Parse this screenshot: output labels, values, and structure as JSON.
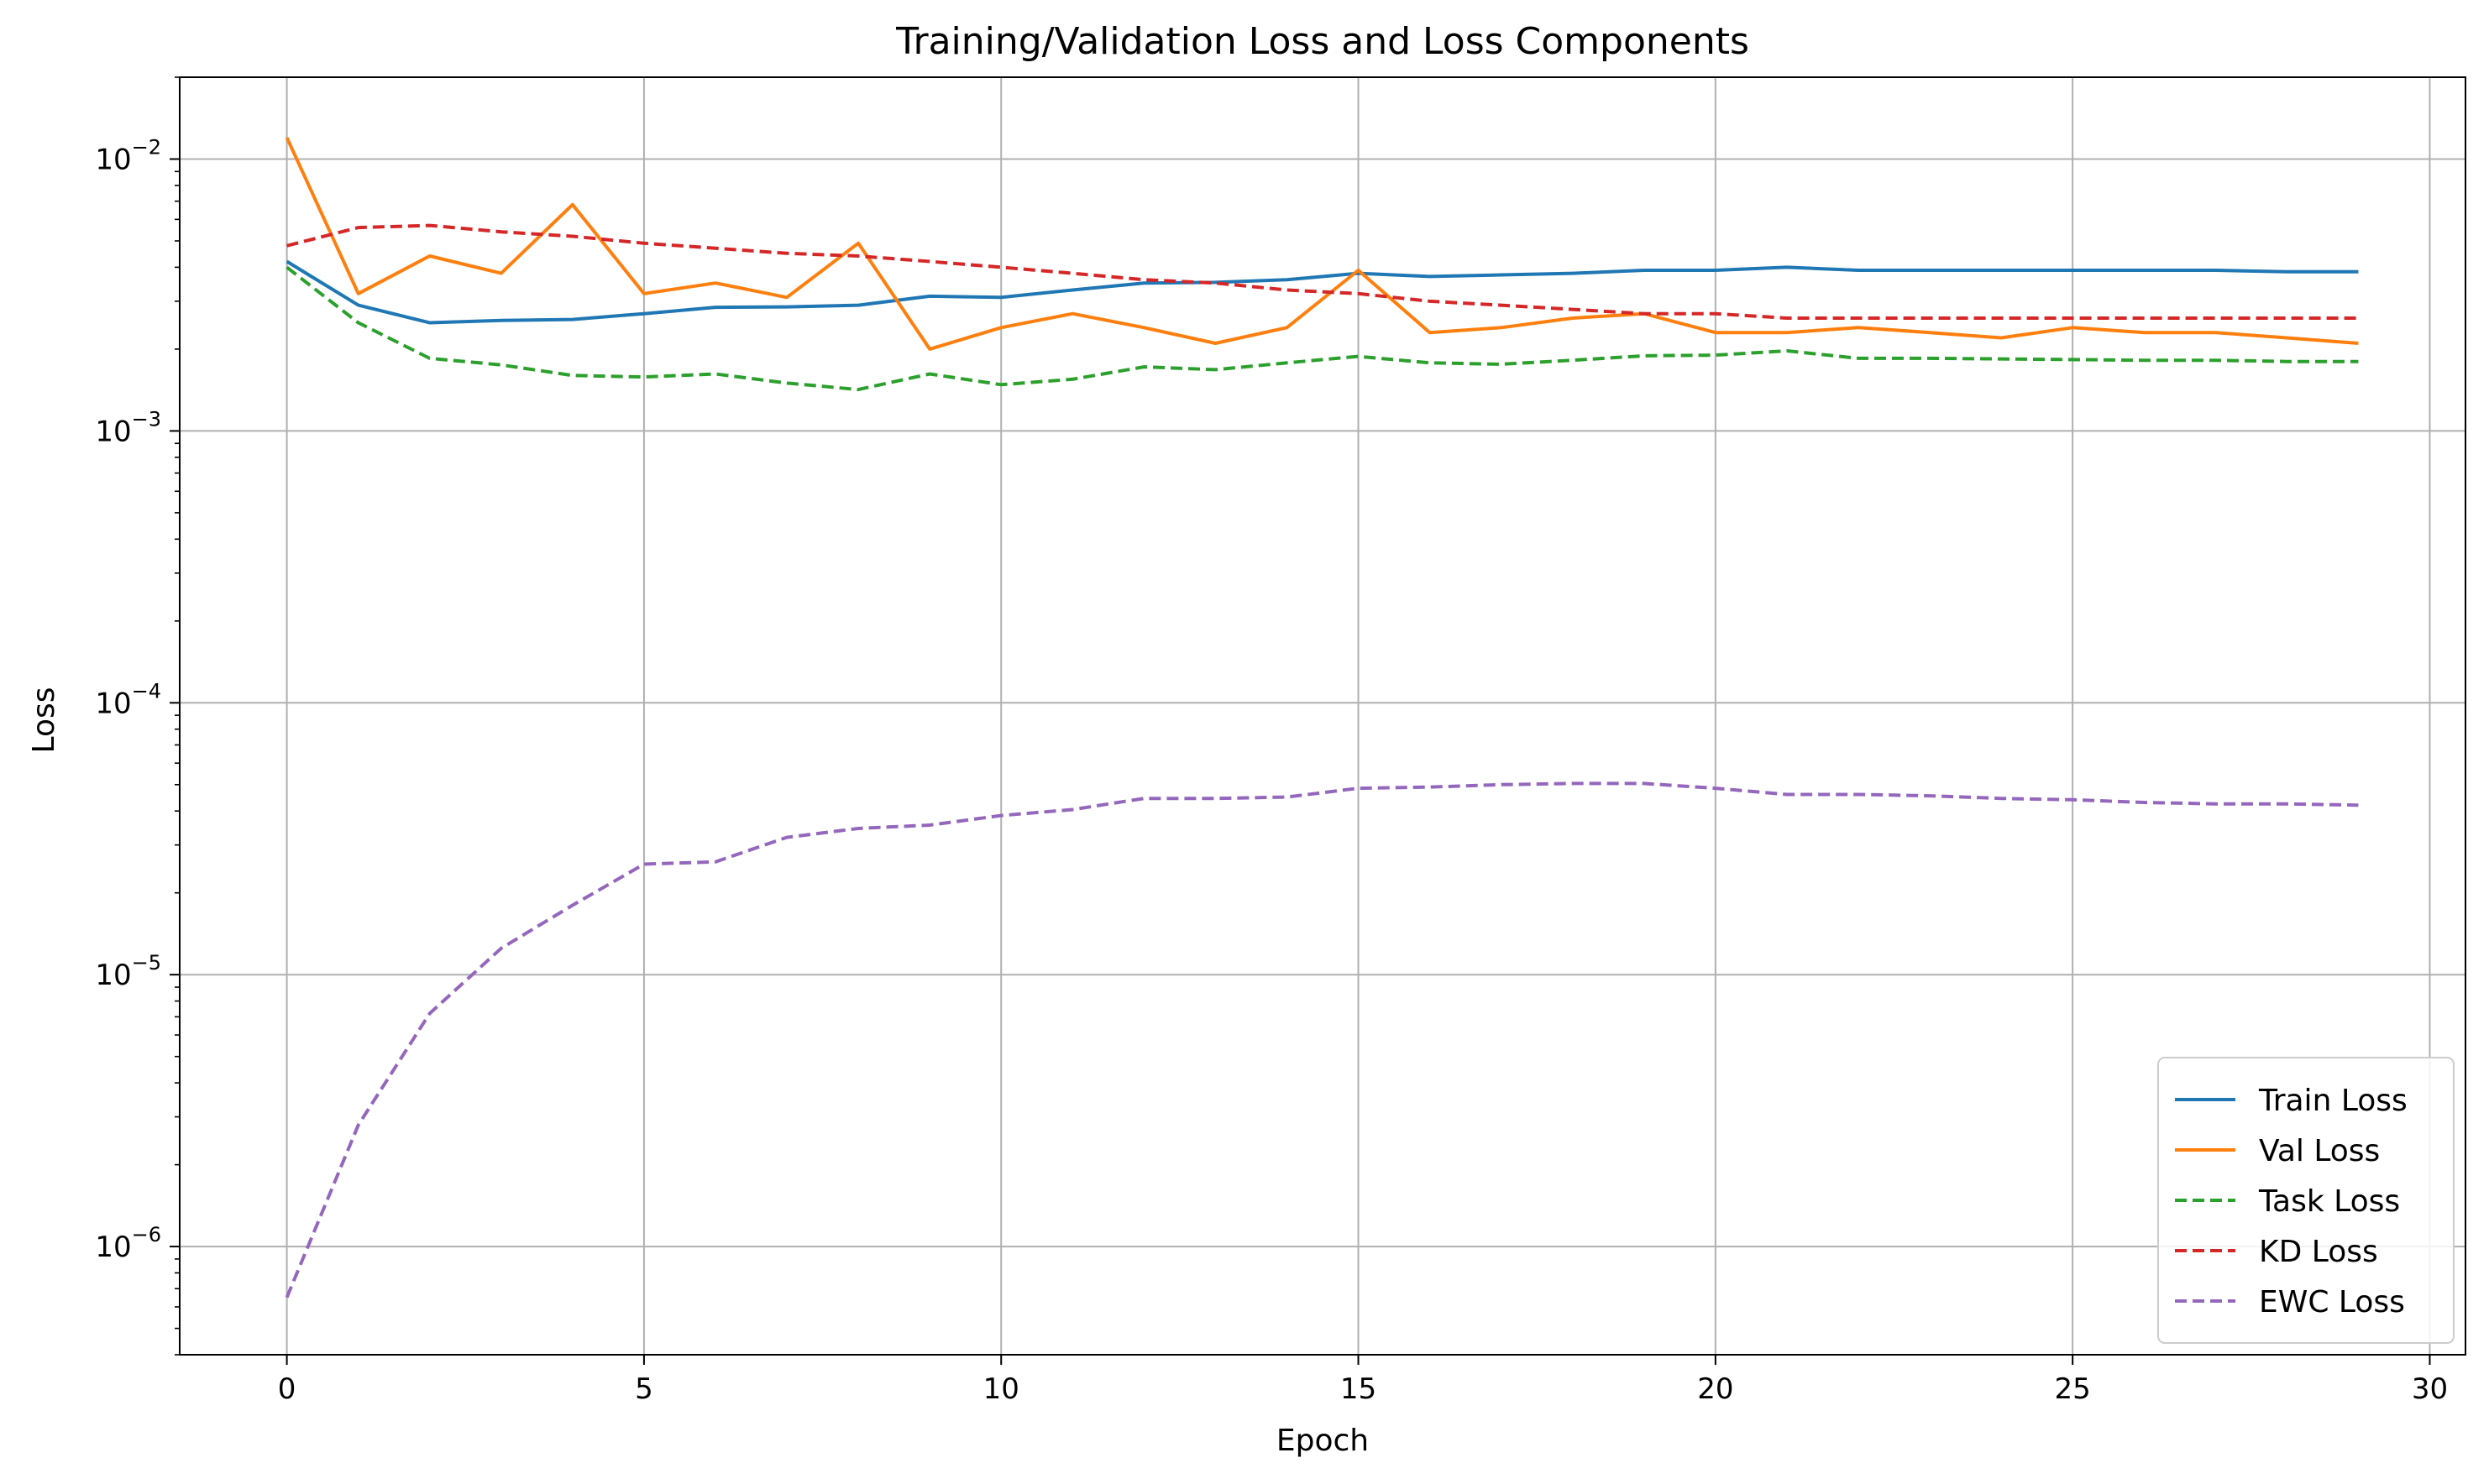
{
  "chart_data": {
    "type": "line",
    "title": "Training/Validation Loss and Loss Components",
    "xlabel": "Epoch",
    "ylabel": "Loss",
    "yscale": "log",
    "xlim": [
      -1.5,
      30.5
    ],
    "ylim": [
      4e-07,
      0.02
    ],
    "x_ticks": [
      0,
      5,
      10,
      15,
      20,
      25,
      30
    ],
    "x_tick_labels": [
      "0",
      "5",
      "10",
      "15",
      "20",
      "25",
      "30"
    ],
    "y_ticks": [
      0.01,
      0.001,
      0.0001,
      1e-05,
      1e-06
    ],
    "y_tick_labels": [
      {
        "base": "10",
        "exp": "−2"
      },
      {
        "base": "10",
        "exp": "−3"
      },
      {
        "base": "10",
        "exp": "−4"
      },
      {
        "base": "10",
        "exp": "−5"
      },
      {
        "base": "10",
        "exp": "−6"
      }
    ],
    "grid": true,
    "legend_position": "lower-right",
    "x": [
      0,
      1,
      2,
      3,
      4,
      5,
      6,
      7,
      8,
      9,
      10,
      11,
      12,
      13,
      14,
      15,
      16,
      17,
      18,
      19,
      20,
      21,
      22,
      23,
      24,
      25,
      26,
      27,
      28,
      29
    ],
    "series": [
      {
        "name": "Train Loss",
        "color": "#1f77b4",
        "style": "solid",
        "values": [
          0.0042,
          0.0029,
          0.0025,
          0.00255,
          0.00257,
          0.0027,
          0.00285,
          0.00286,
          0.0029,
          0.00313,
          0.0031,
          0.0033,
          0.0035,
          0.00352,
          0.0036,
          0.0038,
          0.0037,
          0.00375,
          0.0038,
          0.0039,
          0.0039,
          0.004,
          0.0039,
          0.0039,
          0.0039,
          0.0039,
          0.0039,
          0.0039,
          0.00385,
          0.00385
        ]
      },
      {
        "name": "Val Loss",
        "color": "#ff7f0e",
        "style": "solid",
        "values": [
          0.012,
          0.0032,
          0.0044,
          0.0038,
          0.0068,
          0.0032,
          0.0035,
          0.0031,
          0.0049,
          0.002,
          0.0024,
          0.0027,
          0.0024,
          0.0021,
          0.0024,
          0.0039,
          0.0023,
          0.0024,
          0.0026,
          0.0027,
          0.0023,
          0.0023,
          0.0024,
          0.0023,
          0.0022,
          0.0024,
          0.0023,
          0.0023,
          0.0022,
          0.0021
        ]
      },
      {
        "name": "Task Loss",
        "color": "#2ca02c",
        "style": "dashed",
        "values": [
          0.004,
          0.0025,
          0.00185,
          0.00175,
          0.0016,
          0.00158,
          0.00162,
          0.0015,
          0.00142,
          0.00162,
          0.00148,
          0.00155,
          0.00172,
          0.00168,
          0.00178,
          0.00188,
          0.00178,
          0.00176,
          0.00182,
          0.00189,
          0.0019,
          0.00197,
          0.00185,
          0.00185,
          0.00184,
          0.00183,
          0.00182,
          0.00182,
          0.0018,
          0.0018
        ]
      },
      {
        "name": "KD Loss",
        "color": "#d62728",
        "style": "dashed",
        "values": [
          0.0048,
          0.0056,
          0.0057,
          0.0054,
          0.0052,
          0.0049,
          0.0047,
          0.0045,
          0.0044,
          0.0042,
          0.004,
          0.0038,
          0.0036,
          0.0035,
          0.0033,
          0.0032,
          0.003,
          0.0029,
          0.0028,
          0.0027,
          0.0027,
          0.0026,
          0.0026,
          0.0026,
          0.0026,
          0.0026,
          0.0026,
          0.0026,
          0.0026,
          0.0026
        ]
      },
      {
        "name": "EWC Loss",
        "color": "#9467bd",
        "style": "dashed",
        "values": [
          6.5e-07,
          2.8e-06,
          7.2e-06,
          1.25e-05,
          1.8e-05,
          2.55e-05,
          2.6e-05,
          3.2e-05,
          3.45e-05,
          3.55e-05,
          3.85e-05,
          4.05e-05,
          4.45e-05,
          4.45e-05,
          4.5e-05,
          4.85e-05,
          4.9e-05,
          5e-05,
          5.05e-05,
          5.05e-05,
          4.85e-05,
          4.6e-05,
          4.6e-05,
          4.55e-05,
          4.45e-05,
          4.4e-05,
          4.3e-05,
          4.25e-05,
          4.25e-05,
          4.2e-05
        ]
      }
    ]
  }
}
